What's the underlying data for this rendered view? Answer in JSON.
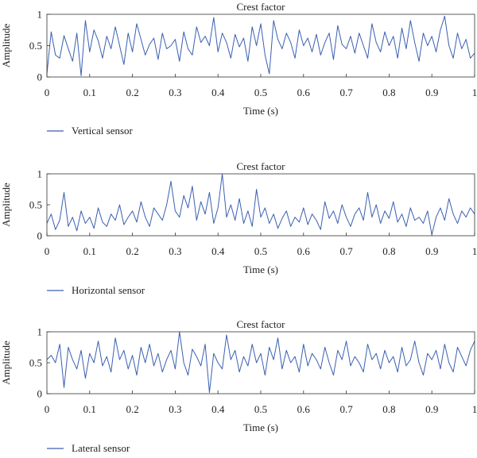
{
  "chart_data": [
    {
      "type": "line",
      "title": "Crest factor",
      "xlabel": "Time (s)",
      "ylabel": "Amplitude",
      "xlim": [
        0,
        1
      ],
      "ylim": [
        0,
        1
      ],
      "xticks": [
        "0",
        "0.1",
        "0.2",
        "0.3",
        "0.4",
        "0.5",
        "0.6",
        "0.7",
        "0.8",
        "0.9",
        "1"
      ],
      "yticks": [
        "0",
        "0.5",
        "1"
      ],
      "line_color": "#3a5fb0",
      "grid": false,
      "legend_position": "bottom-left",
      "series": [
        {
          "name": "Vertical sensor",
          "x": [
            0.0,
            0.01,
            0.02,
            0.03,
            0.04,
            0.05,
            0.06,
            0.07,
            0.08,
            0.09,
            0.1,
            0.11,
            0.12,
            0.13,
            0.14,
            0.15,
            0.16,
            0.17,
            0.18,
            0.19,
            0.2,
            0.21,
            0.22,
            0.23,
            0.24,
            0.25,
            0.26,
            0.27,
            0.28,
            0.29,
            0.3,
            0.31,
            0.32,
            0.33,
            0.34,
            0.35,
            0.36,
            0.37,
            0.38,
            0.39,
            0.4,
            0.41,
            0.42,
            0.43,
            0.44,
            0.45,
            0.46,
            0.47,
            0.48,
            0.49,
            0.5,
            0.51,
            0.52,
            0.53,
            0.54,
            0.55,
            0.56,
            0.57,
            0.58,
            0.59,
            0.6,
            0.61,
            0.62,
            0.63,
            0.64,
            0.65,
            0.66,
            0.67,
            0.68,
            0.69,
            0.7,
            0.71,
            0.72,
            0.73,
            0.74,
            0.75,
            0.76,
            0.77,
            0.78,
            0.79,
            0.8,
            0.81,
            0.82,
            0.83,
            0.84,
            0.85,
            0.86,
            0.87,
            0.88,
            0.89,
            0.9,
            0.91,
            0.92,
            0.93,
            0.94,
            0.95,
            0.96,
            0.97,
            0.98,
            0.99,
            1.0
          ],
          "values": [
            0.05,
            0.72,
            0.35,
            0.3,
            0.66,
            0.45,
            0.25,
            0.7,
            0.02,
            0.9,
            0.4,
            0.75,
            0.58,
            0.3,
            0.65,
            0.45,
            0.8,
            0.5,
            0.2,
            0.7,
            0.4,
            0.85,
            0.6,
            0.35,
            0.52,
            0.62,
            0.28,
            0.7,
            0.45,
            0.5,
            0.6,
            0.25,
            0.72,
            0.45,
            0.35,
            0.8,
            0.55,
            0.65,
            0.5,
            0.95,
            0.4,
            0.7,
            0.55,
            0.3,
            0.68,
            0.48,
            0.62,
            0.25,
            0.8,
            0.5,
            0.85,
            0.35,
            0.05,
            0.9,
            0.6,
            0.45,
            0.7,
            0.55,
            0.3,
            0.75,
            0.5,
            0.62,
            0.4,
            0.68,
            0.35,
            0.55,
            0.7,
            0.28,
            0.82,
            0.52,
            0.45,
            0.65,
            0.38,
            0.7,
            0.5,
            0.3,
            0.85,
            0.55,
            0.4,
            0.72,
            0.5,
            0.65,
            0.3,
            0.78,
            0.45,
            0.9,
            0.55,
            0.25,
            0.7,
            0.5,
            0.65,
            0.4,
            0.75,
            0.97,
            0.5,
            0.3,
            0.7,
            0.45,
            0.6,
            0.3,
            0.38
          ]
        }
      ]
    },
    {
      "type": "line",
      "title": "Crest factor",
      "xlabel": "Time (s)",
      "ylabel": "Amplitude",
      "xlim": [
        0,
        1
      ],
      "ylim": [
        0,
        1
      ],
      "xticks": [
        "0",
        "0.1",
        "0.2",
        "0.3",
        "0.4",
        "0.5",
        "0.6",
        "0.7",
        "0.8",
        "0.9",
        "1"
      ],
      "yticks": [
        "0",
        "0.5",
        "1"
      ],
      "line_color": "#3a5fb0",
      "grid": false,
      "legend_position": "bottom-left",
      "series": [
        {
          "name": "Horizontal sensor",
          "x": [
            0.0,
            0.01,
            0.02,
            0.03,
            0.04,
            0.05,
            0.06,
            0.07,
            0.08,
            0.09,
            0.1,
            0.11,
            0.12,
            0.13,
            0.14,
            0.15,
            0.16,
            0.17,
            0.18,
            0.19,
            0.2,
            0.21,
            0.22,
            0.23,
            0.24,
            0.25,
            0.26,
            0.27,
            0.28,
            0.29,
            0.3,
            0.31,
            0.32,
            0.33,
            0.34,
            0.35,
            0.36,
            0.37,
            0.38,
            0.39,
            0.4,
            0.41,
            0.42,
            0.43,
            0.44,
            0.45,
            0.46,
            0.47,
            0.48,
            0.49,
            0.5,
            0.51,
            0.52,
            0.53,
            0.54,
            0.55,
            0.56,
            0.57,
            0.58,
            0.59,
            0.6,
            0.61,
            0.62,
            0.63,
            0.64,
            0.65,
            0.66,
            0.67,
            0.68,
            0.69,
            0.7,
            0.71,
            0.72,
            0.73,
            0.74,
            0.75,
            0.76,
            0.77,
            0.78,
            0.79,
            0.8,
            0.81,
            0.82,
            0.83,
            0.84,
            0.85,
            0.86,
            0.87,
            0.88,
            0.89,
            0.9,
            0.91,
            0.92,
            0.93,
            0.94,
            0.95,
            0.96,
            0.97,
            0.98,
            0.99,
            1.0
          ],
          "values": [
            0.2,
            0.35,
            0.1,
            0.25,
            0.7,
            0.15,
            0.3,
            0.08,
            0.4,
            0.2,
            0.3,
            0.12,
            0.45,
            0.22,
            0.15,
            0.35,
            0.25,
            0.5,
            0.18,
            0.3,
            0.4,
            0.22,
            0.55,
            0.3,
            0.15,
            0.45,
            0.35,
            0.25,
            0.5,
            0.88,
            0.4,
            0.3,
            0.65,
            0.45,
            0.8,
            0.25,
            0.55,
            0.35,
            0.7,
            0.2,
            0.45,
            1.0,
            0.3,
            0.5,
            0.25,
            0.6,
            0.2,
            0.4,
            0.15,
            0.75,
            0.3,
            0.45,
            0.2,
            0.35,
            0.12,
            0.28,
            0.4,
            0.15,
            0.3,
            0.22,
            0.45,
            0.18,
            0.35,
            0.25,
            0.1,
            0.55,
            0.28,
            0.4,
            0.2,
            0.5,
            0.3,
            0.15,
            0.35,
            0.45,
            0.25,
            0.7,
            0.3,
            0.5,
            0.2,
            0.4,
            0.28,
            0.55,
            0.22,
            0.35,
            0.15,
            0.45,
            0.25,
            0.3,
            0.2,
            0.4,
            0.02,
            0.3,
            0.45,
            0.25,
            0.6,
            0.35,
            0.2,
            0.4,
            0.3,
            0.45,
            0.35
          ]
        }
      ]
    },
    {
      "type": "line",
      "title": "Crest factor",
      "xlabel": "Time (s)",
      "ylabel": "Amplitude",
      "xlim": [
        0,
        1
      ],
      "ylim": [
        0,
        1
      ],
      "xticks": [
        "0",
        "0.1",
        "0.2",
        "0.3",
        "0.4",
        "0.5",
        "0.6",
        "0.7",
        "0.8",
        "0.9",
        "1"
      ],
      "yticks": [
        "0",
        "0.5",
        "1"
      ],
      "line_color": "#3a5fb0",
      "grid": false,
      "legend_position": "bottom-left",
      "series": [
        {
          "name": "Lateral sensor",
          "x": [
            0.0,
            0.01,
            0.02,
            0.03,
            0.04,
            0.05,
            0.06,
            0.07,
            0.08,
            0.09,
            0.1,
            0.11,
            0.12,
            0.13,
            0.14,
            0.15,
            0.16,
            0.17,
            0.18,
            0.19,
            0.2,
            0.21,
            0.22,
            0.23,
            0.24,
            0.25,
            0.26,
            0.27,
            0.28,
            0.29,
            0.3,
            0.31,
            0.32,
            0.33,
            0.34,
            0.35,
            0.36,
            0.37,
            0.38,
            0.39,
            0.4,
            0.41,
            0.42,
            0.43,
            0.44,
            0.45,
            0.46,
            0.47,
            0.48,
            0.49,
            0.5,
            0.51,
            0.52,
            0.53,
            0.54,
            0.55,
            0.56,
            0.57,
            0.58,
            0.59,
            0.6,
            0.61,
            0.62,
            0.63,
            0.64,
            0.65,
            0.66,
            0.67,
            0.68,
            0.69,
            0.7,
            0.71,
            0.72,
            0.73,
            0.74,
            0.75,
            0.76,
            0.77,
            0.78,
            0.79,
            0.8,
            0.81,
            0.82,
            0.83,
            0.84,
            0.85,
            0.86,
            0.87,
            0.88,
            0.89,
            0.9,
            0.91,
            0.92,
            0.93,
            0.94,
            0.95,
            0.96,
            0.97,
            0.98,
            0.99,
            1.0
          ],
          "values": [
            0.55,
            0.62,
            0.5,
            0.8,
            0.1,
            0.75,
            0.55,
            0.4,
            0.7,
            0.25,
            0.65,
            0.5,
            0.85,
            0.45,
            0.6,
            0.35,
            0.9,
            0.55,
            0.7,
            0.4,
            0.62,
            0.3,
            0.75,
            0.5,
            0.8,
            0.45,
            0.65,
            0.35,
            0.55,
            0.7,
            0.4,
            1.0,
            0.5,
            0.3,
            0.72,
            0.6,
            0.45,
            0.8,
            0.02,
            0.65,
            0.5,
            0.4,
            0.95,
            0.55,
            0.7,
            0.35,
            0.6,
            0.45,
            0.8,
            0.5,
            0.65,
            0.3,
            0.75,
            0.55,
            0.9,
            0.4,
            0.7,
            0.5,
            0.6,
            0.35,
            0.8,
            0.45,
            0.65,
            0.55,
            0.4,
            0.75,
            0.5,
            0.3,
            0.7,
            0.55,
            0.85,
            0.45,
            0.6,
            0.5,
            0.35,
            0.8,
            0.55,
            0.65,
            0.4,
            0.7,
            0.5,
            0.6,
            0.35,
            0.75,
            0.45,
            0.55,
            0.85,
            0.5,
            0.3,
            0.65,
            0.55,
            0.7,
            0.4,
            0.8,
            0.5,
            0.35,
            0.75,
            0.6,
            0.45,
            0.7,
            0.85
          ]
        }
      ]
    }
  ]
}
